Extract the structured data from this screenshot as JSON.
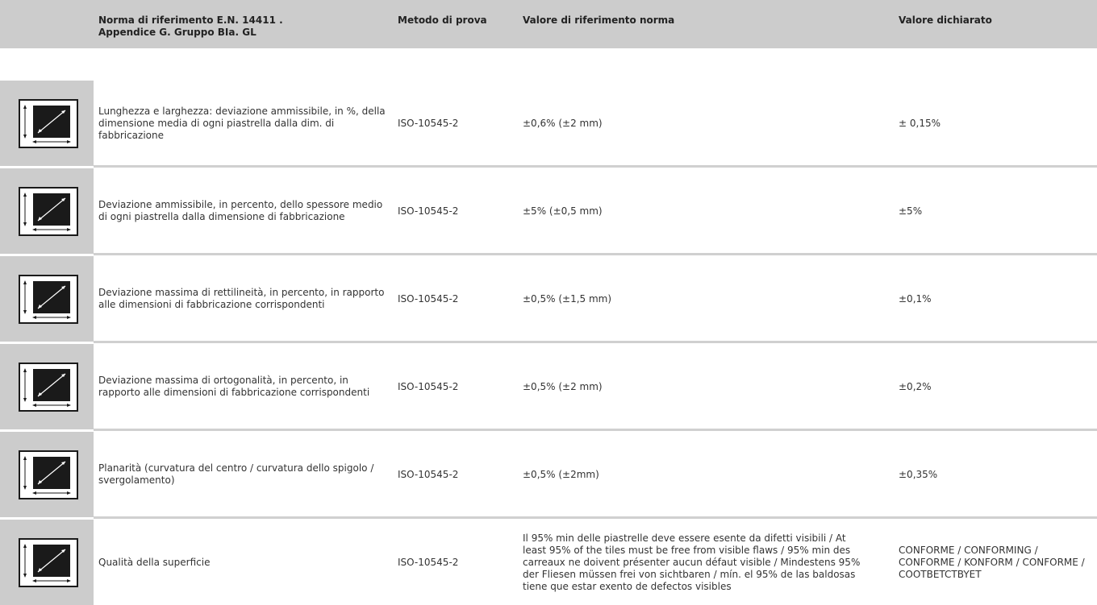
{
  "header": {
    "norm_line1": "Norma di riferimento E.N. 14411 .",
    "norm_line2": "Appendice G. Gruppo BIa. GL",
    "method": "Metodo di prova",
    "reference": "Valore di riferimento norma",
    "declared": "Valore dichiarato"
  },
  "icon": "tile-dimension-icon",
  "rows": [
    {
      "description": "Lunghezza e larghezza: deviazione ammissibile, in %, della dimensione media di ogni piastrella dalla dim. di fabbricazione",
      "method": "ISO-10545-2",
      "reference": "±0,6% (±2 mm)",
      "declared": "± 0,15%"
    },
    {
      "description": "Deviazione ammissibile, in percento, dello spessore medio di ogni piastrella dalla dimensione di fabbricazione",
      "method": "ISO-10545-2",
      "reference": "±5% (±0,5 mm)",
      "declared": "±5%"
    },
    {
      "description": "Deviazione massima di rettilineità, in percento, in rapporto alle dimensioni di fabbricazione corrispondenti",
      "method": "ISO-10545-2",
      "reference": "±0,5% (±1,5 mm)",
      "declared": "±0,1%"
    },
    {
      "description": "Deviazione massima di ortogonalità, in percento, in rapporto alle dimensioni di fabbricazione corrispondenti",
      "method": "ISO-10545-2",
      "reference": "±0,5% (±2 mm)",
      "declared": "±0,2%"
    },
    {
      "description": "Planarità (curvatura del centro / curvatura dello spigolo / svergolamento)",
      "method": "ISO-10545-2",
      "reference": "±0,5% (±2mm)",
      "declared": "±0,35%"
    },
    {
      "description": "Qualità della superficie",
      "method": "ISO-10545-2",
      "reference": "Il 95% min delle piastrelle deve essere esente da difetti visibili / At least 95% of the tiles must be free from visible flaws / 95% min des carreaux ne doivent présenter aucun défaut visible / Mindestens 95% der Fliesen müssen frei von sichtbaren / mín. el 95% de las baldosas tiene que estar exento de defectos visibles",
      "declared": "CONFORME / CONFORMING / CONFORME / KONFORM / CONFORME / COOTBETCTBYET"
    }
  ]
}
